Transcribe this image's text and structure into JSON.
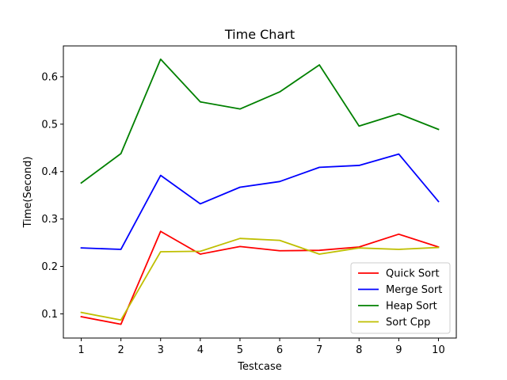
{
  "chart_data": {
    "type": "line",
    "title": "Time Chart",
    "xlabel": "Testcase",
    "ylabel": "Time(Second)",
    "x": [
      1,
      2,
      3,
      4,
      5,
      6,
      7,
      8,
      9,
      10
    ],
    "xlim": [
      0.55,
      10.45
    ],
    "ylim": [
      0.049,
      0.665
    ],
    "yticks": [
      0.1,
      0.2,
      0.3,
      0.4,
      0.5,
      0.6
    ],
    "ytick_labels": [
      "0.1",
      "0.2",
      "0.3",
      "0.4",
      "0.5",
      "0.6"
    ],
    "xtick_labels": [
      "1",
      "2",
      "3",
      "4",
      "5",
      "6",
      "7",
      "8",
      "9",
      "10"
    ],
    "grid": false,
    "legend_position": "lower-right",
    "series": [
      {
        "name": "Quick Sort",
        "color": "#ff0000",
        "values": [
          0.094,
          0.078,
          0.274,
          0.226,
          0.242,
          0.233,
          0.234,
          0.241,
          0.268,
          0.241
        ]
      },
      {
        "name": "Merge Sort",
        "color": "#0000ff",
        "values": [
          0.239,
          0.236,
          0.392,
          0.332,
          0.367,
          0.379,
          0.409,
          0.413,
          0.437,
          0.337
        ]
      },
      {
        "name": "Heap Sort",
        "color": "#008000",
        "values": [
          0.376,
          0.438,
          0.637,
          0.547,
          0.532,
          0.568,
          0.625,
          0.496,
          0.522,
          0.489
        ]
      },
      {
        "name": "Sort Cpp",
        "color": "#bfbf00",
        "values": [
          0.103,
          0.087,
          0.231,
          0.232,
          0.259,
          0.255,
          0.226,
          0.239,
          0.236,
          0.24
        ]
      }
    ]
  }
}
